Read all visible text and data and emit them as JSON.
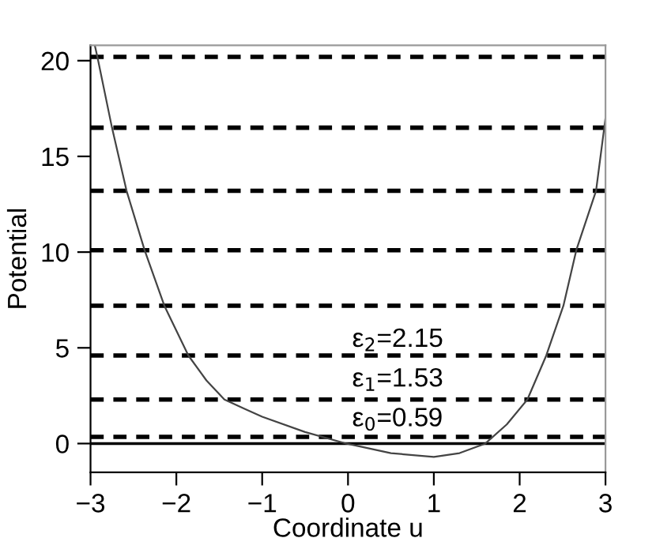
{
  "chart_data": {
    "type": "line",
    "xlabel": "Coordinate u",
    "ylabel": "Potential",
    "x": [
      -2.95,
      -2.92,
      -2.75,
      -2.58,
      -2.37,
      -2.14,
      -1.86,
      -1.65,
      -1.44,
      -1.2,
      -1.0,
      -0.5,
      -0.02,
      0.5,
      1.0,
      1.3,
      1.6,
      1.85,
      2.09,
      2.31,
      2.51,
      2.66,
      2.89,
      3.0
    ],
    "series": [
      {
        "color": "#444444",
        "values": [
          20.8,
          20.2,
          16.5,
          13.2,
          10.1,
          7.2,
          4.6,
          3.3,
          2.3,
          1.8,
          1.4,
          0.6,
          0,
          -0.5,
          -0.7,
          -0.5,
          0,
          1.0,
          2.3,
          4.6,
          7.2,
          10.1,
          13.2,
          17.0
        ]
      }
    ],
    "annotations": [
      "ε$_{0}$=0.59",
      "ε$_{1}$=1.53",
      "ε$_{2}$=2.15"
    ],
    "xlim": [
      -3,
      3
    ],
    "ylim": [
      -1.5,
      20.8
    ],
    "xticks": [
      {
        "value": -3,
        "label": "−3"
      },
      {
        "value": -2,
        "label": "−2"
      },
      {
        "value": -1,
        "label": "−1"
      },
      0,
      1,
      2,
      3
    ],
    "yticks": [
      0,
      5,
      10,
      15,
      20
    ],
    "grid": false,
    "legend": false,
    "marker": "none",
    "line_style": "solid",
    "ref_lines": [
      {
        "axis": "y",
        "value": 0,
        "color": "#000000",
        "line_style": "solid"
      },
      {
        "axis": "y",
        "value": 0.35,
        "color": "#000000",
        "line_style": "dashed"
      },
      {
        "axis": "y",
        "value": 2.3,
        "color": "#000000",
        "line_style": "dashed"
      },
      {
        "axis": "y",
        "value": 4.6,
        "color": "#000000",
        "line_style": "dashed"
      },
      {
        "axis": "y",
        "value": 7.2,
        "color": "#000000",
        "line_style": "dashed"
      },
      {
        "axis": "y",
        "value": 10.1,
        "color": "#000000",
        "line_style": "dashed"
      },
      {
        "axis": "y",
        "value": 13.2,
        "color": "#000000",
        "line_style": "dashed"
      },
      {
        "axis": "y",
        "value": 16.5,
        "color": "#000000",
        "line_style": "dashed"
      },
      {
        "axis": "y",
        "value": 20.2,
        "color": "#000000",
        "line_style": "dashed"
      }
    ]
  }
}
